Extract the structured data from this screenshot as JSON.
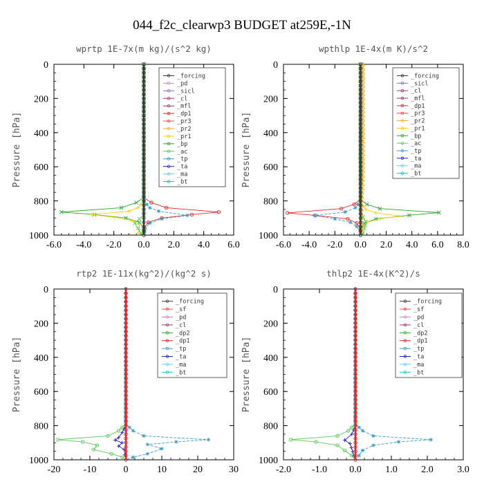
{
  "figure_title": "044_f2c_clearwp3  BUDGET at259E,-1N",
  "colors": {
    "forcing": "#333333",
    "pd": "#cc88cc",
    "sicl": "#8866cc",
    "cl": "#aa3366",
    "mfl": "#993366",
    "dp1": "#ee2222",
    "pr3": "#ff4444",
    "pr2": "#ffaa22",
    "pr1": "#ffcc00",
    "bp": "#22aa22",
    "ac": "#55cc55",
    "tp": "#3399cc",
    "ta": "#2222cc",
    "ma": "#66ccff",
    "bt": "#00cccc",
    "sf": "#ff4444",
    "dp2": "#22aa22"
  },
  "chart_data": [
    {
      "type": "line",
      "title": "wprtp  1E-7x(m kg)/(s^2 kg)",
      "ylabel": "Pressure [hPa]",
      "xlim": [
        -6.0,
        6.0
      ],
      "xticks": [
        -6.0,
        -4.0,
        -2.0,
        0.0,
        2.0,
        4.0,
        6.0
      ],
      "xtick_labels": [
        "-6.0",
        "-4.0",
        "-2.0",
        "0.0",
        "2.0",
        "4.0",
        "6.0"
      ],
      "ylim": [
        1000,
        0
      ],
      "yticks": [
        0,
        200,
        400,
        600,
        800,
        1000
      ],
      "ytick_labels": [
        "0",
        "200",
        "400",
        "600",
        "800",
        "1000"
      ],
      "legend_position": "top-right",
      "legend": [
        "_forcing",
        "_pd",
        "_sicl",
        "_cl",
        "_mfl",
        "_dp1",
        "_pr3",
        "_pr2",
        "_pr1",
        "_bp",
        "_ac",
        "_tp",
        "_ta",
        "_ma",
        "_bt"
      ],
      "series": [
        {
          "name": "_dp1",
          "color_key": "dp1",
          "marker": "o",
          "points": [
            [
              0,
              0
            ],
            [
              0,
              780
            ],
            [
              0.5,
              810
            ],
            [
              1.5,
              840
            ],
            [
              5.0,
              865
            ],
            [
              3.2,
              880
            ],
            [
              1.2,
              900
            ],
            [
              0.3,
              925
            ],
            [
              0,
              960
            ],
            [
              0,
              1000
            ]
          ]
        },
        {
          "name": "_bp",
          "color_key": "bp",
          "marker": "x",
          "points": [
            [
              0,
              0
            ],
            [
              0,
              780
            ],
            [
              -0.5,
              810
            ],
            [
              -1.5,
              840
            ],
            [
              -5.5,
              865
            ],
            [
              -3.3,
              880
            ],
            [
              -1.2,
              900
            ],
            [
              -0.3,
              925
            ],
            [
              0,
              960
            ],
            [
              0,
              1000
            ]
          ]
        },
        {
          "name": "_pr1",
          "color_key": "pr1",
          "marker": "+",
          "points": [
            [
              0,
              0
            ],
            [
              0,
              800
            ],
            [
              -0.4,
              840
            ],
            [
              -1.0,
              860
            ],
            [
              -3.5,
              880
            ],
            [
              -2.0,
              895
            ],
            [
              -0.8,
              915
            ],
            [
              -0.3,
              940
            ],
            [
              -0.3,
              970
            ],
            [
              -0.4,
              990
            ],
            [
              0,
              1000
            ]
          ]
        },
        {
          "name": "_tp",
          "color_key": "tp",
          "marker": "*",
          "points": [
            [
              0,
              0
            ],
            [
              0,
              800
            ],
            [
              0.4,
              840
            ],
            [
              1.0,
              860
            ],
            [
              2.9,
              885
            ],
            [
              1.2,
              905
            ],
            [
              0.4,
              930
            ],
            [
              0.1,
              960
            ],
            [
              0,
              1000
            ]
          ]
        },
        {
          "name": "_ac",
          "color_key": "ac",
          "marker": "x",
          "points": [
            [
              0,
              0
            ],
            [
              0,
              880
            ],
            [
              -0.6,
              930
            ],
            [
              -0.4,
              960
            ],
            [
              -0.2,
              990
            ],
            [
              0,
              1000
            ]
          ]
        },
        {
          "name": "_forcing",
          "color_key": "forcing",
          "marker": "o",
          "points": [
            [
              0,
              0
            ],
            [
              0,
              1000
            ]
          ]
        }
      ]
    },
    {
      "type": "line",
      "title": "wpthlp  1E-4x(m K)/s^2",
      "ylabel": "Pressure [hPa]",
      "xlim": [
        -6.0,
        8.0
      ],
      "xticks": [
        -6.0,
        -4.0,
        -2.0,
        0.0,
        2.0,
        4.0,
        6.0,
        8.0
      ],
      "xtick_labels": [
        "-6.0",
        "-4.0",
        "-2.0",
        "0.0",
        "2.0",
        "4.0",
        "6.0",
        "8.0"
      ],
      "ylim": [
        1000,
        0
      ],
      "yticks": [
        0,
        200,
        400,
        600,
        800,
        1000
      ],
      "ytick_labels": [
        "0",
        "200",
        "400",
        "600",
        "800",
        "1000"
      ],
      "legend_position": "top-right",
      "legend": [
        "_forcing",
        "_sicl",
        "_cl",
        "_mfl",
        "_dp1",
        "_pr3",
        "_pr2",
        "_pr1",
        "_bp",
        "_ac",
        "_tp",
        "_ta",
        "_ma",
        "_bt"
      ],
      "series": [
        {
          "name": "_dp1",
          "color_key": "dp1",
          "marker": "o",
          "points": [
            [
              0,
              0
            ],
            [
              0,
              790
            ],
            [
              -0.5,
              820
            ],
            [
              -1.5,
              845
            ],
            [
              -5.7,
              870
            ],
            [
              -3.5,
              885
            ],
            [
              -1.0,
              905
            ],
            [
              -0.3,
              930
            ],
            [
              0,
              960
            ],
            [
              0,
              1000
            ]
          ]
        },
        {
          "name": "_bp",
          "color_key": "bp",
          "marker": "x",
          "points": [
            [
              0,
              0
            ],
            [
              0,
              790
            ],
            [
              0.5,
              820
            ],
            [
              1.5,
              845
            ],
            [
              6.1,
              868
            ],
            [
              3.8,
              884
            ],
            [
              1.2,
              905
            ],
            [
              0.3,
              930
            ],
            [
              0,
              960
            ],
            [
              0,
              1000
            ]
          ]
        },
        {
          "name": "_tp",
          "color_key": "tp",
          "marker": "*",
          "points": [
            [
              0,
              0
            ],
            [
              0,
              800
            ],
            [
              -0.4,
              840
            ],
            [
              -1.2,
              865
            ],
            [
              -3.6,
              885
            ],
            [
              -2.0,
              905
            ],
            [
              -0.8,
              925
            ],
            [
              -0.3,
              950
            ],
            [
              0,
              980
            ],
            [
              0,
              1000
            ]
          ]
        },
        {
          "name": "_pr1",
          "color_key": "pr1",
          "marker": "+",
          "points": [
            [
              0,
              0
            ],
            [
              0,
              810
            ],
            [
              0.4,
              850
            ],
            [
              1.2,
              870
            ],
            [
              3.0,
              888
            ],
            [
              1.5,
              905
            ],
            [
              0.5,
              925
            ],
            [
              0.2,
              950
            ],
            [
              0,
              1000
            ]
          ]
        },
        {
          "name": "_ac",
          "color_key": "ac",
          "marker": "x",
          "points": [
            [
              0,
              0
            ],
            [
              0,
              870
            ],
            [
              0.4,
              920
            ],
            [
              0.3,
              960
            ],
            [
              0.2,
              990
            ],
            [
              0,
              1000
            ]
          ]
        },
        {
          "name": "_pr2",
          "color_key": "pr2",
          "marker": "^",
          "points": [
            [
              0.2,
              0
            ],
            [
              0.2,
              600
            ],
            [
              0.1,
              800
            ],
            [
              0,
              1000
            ]
          ]
        },
        {
          "name": "_forcing",
          "color_key": "forcing",
          "marker": "o",
          "points": [
            [
              0,
              0
            ],
            [
              0,
              1000
            ]
          ]
        }
      ]
    },
    {
      "type": "line",
      "title": "rtp2  1E-11x(kg^2)/(kg^2 s)",
      "ylabel": "Pressure [hPa]",
      "xlim": [
        -20,
        30
      ],
      "xticks": [
        -20,
        -10,
        0,
        10,
        20,
        30
      ],
      "xtick_labels": [
        "-20",
        "-10",
        "0",
        "10",
        "20",
        "30"
      ],
      "ylim": [
        1000,
        0
      ],
      "yticks": [
        0,
        200,
        400,
        600,
        800,
        1000
      ],
      "ytick_labels": [
        "0",
        "200",
        "400",
        "600",
        "800",
        "1000"
      ],
      "legend_position": "top-right",
      "legend": [
        "_forcing",
        "_sf",
        "_pd",
        "_cl",
        "_dp2",
        "_dp1",
        "_tp",
        "_ta",
        "_ma",
        "_bt"
      ],
      "series": [
        {
          "name": "_dp1",
          "color_key": "ac",
          "marker": "o",
          "points": [
            [
              0,
              0
            ],
            [
              0,
              790
            ],
            [
              -2,
              830
            ],
            [
              -5,
              860
            ],
            [
              -19,
              882
            ],
            [
              -12,
              895
            ],
            [
              -8,
              915
            ],
            [
              -9,
              940
            ],
            [
              -4,
              965
            ],
            [
              -1,
              985
            ],
            [
              0,
              1000
            ]
          ]
        },
        {
          "name": "_tp",
          "color_key": "tp",
          "marker": "*",
          "points": [
            [
              0,
              0
            ],
            [
              0,
              790
            ],
            [
              2,
              830
            ],
            [
              5,
              860
            ],
            [
              23,
              882
            ],
            [
              14,
              895
            ],
            [
              6,
              910
            ],
            [
              10,
              935
            ],
            [
              6,
              965
            ],
            [
              2,
              985
            ],
            [
              0,
              1000
            ]
          ]
        },
        {
          "name": "_ta",
          "color_key": "ta",
          "marker": "+",
          "points": [
            [
              0,
              0
            ],
            [
              0,
              800
            ],
            [
              -1,
              840
            ],
            [
              -2,
              870
            ],
            [
              -3,
              885
            ],
            [
              -1,
              900
            ],
            [
              -2,
              920
            ],
            [
              -0.5,
              940
            ],
            [
              0,
              1000
            ]
          ]
        },
        {
          "name": "_forcing",
          "color_key": "dp1",
          "marker": "o",
          "points": [
            [
              0,
              0
            ],
            [
              0,
              1000
            ]
          ]
        }
      ]
    },
    {
      "type": "line",
      "title": "thlp2  1E-4x(K^2)/s",
      "ylabel": "Pressure [hPa]",
      "xlim": [
        -2.0,
        3.0
      ],
      "xticks": [
        -2.0,
        -1.0,
        0.0,
        1.0,
        2.0,
        3.0
      ],
      "xtick_labels": [
        "-2.0",
        "-1.0",
        "0.0",
        "1.0",
        "2.0",
        "3.0"
      ],
      "ylim": [
        1000,
        0
      ],
      "yticks": [
        0,
        200,
        400,
        600,
        800,
        1000
      ],
      "ytick_labels": [
        "0",
        "200",
        "400",
        "600",
        "800",
        "1000"
      ],
      "legend_position": "top-right",
      "legend": [
        "_forcing",
        "_sf",
        "_pd",
        "_cl",
        "_dp2",
        "_dp1",
        "_tp",
        "_ta",
        "_ma",
        "_bt"
      ],
      "series": [
        {
          "name": "_dp1",
          "color_key": "ac",
          "marker": "o",
          "points": [
            [
              0,
              0
            ],
            [
              0,
              790
            ],
            [
              -0.2,
              830
            ],
            [
              -0.5,
              860
            ],
            [
              -1.8,
              882
            ],
            [
              -1.1,
              895
            ],
            [
              -0.5,
              915
            ],
            [
              -0.3,
              945
            ],
            [
              -0.1,
              975
            ],
            [
              0,
              1000
            ]
          ]
        },
        {
          "name": "_tp",
          "color_key": "tp",
          "marker": "*",
          "points": [
            [
              0,
              0
            ],
            [
              0,
              790
            ],
            [
              0.2,
              830
            ],
            [
              0.5,
              860
            ],
            [
              2.1,
              882
            ],
            [
              1.2,
              895
            ],
            [
              0.5,
              915
            ],
            [
              0.2,
              945
            ],
            [
              0.1,
              975
            ],
            [
              0,
              1000
            ]
          ]
        },
        {
          "name": "_ta",
          "color_key": "ta",
          "marker": "+",
          "points": [
            [
              0,
              0
            ],
            [
              0,
              800
            ],
            [
              -0.1,
              850
            ],
            [
              -0.3,
              885
            ],
            [
              -0.15,
              905
            ],
            [
              0,
              1000
            ]
          ]
        },
        {
          "name": "_forcing",
          "color_key": "dp1",
          "marker": "o",
          "points": [
            [
              0,
              0
            ],
            [
              0,
              1000
            ]
          ]
        }
      ]
    }
  ]
}
